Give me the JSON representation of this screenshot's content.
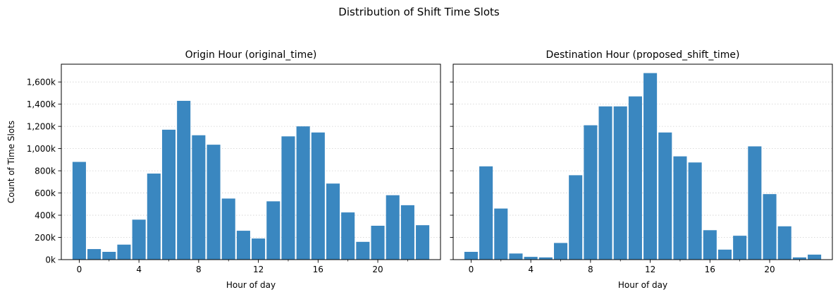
{
  "figure_title": "Distribution of Shift Time Slots",
  "bar_color": "#3a87c0",
  "chart_data": [
    {
      "type": "bar",
      "title": "Origin Hour (original_time)",
      "xlabel": "Hour of day",
      "ylabel": "Count of Time Slots",
      "x_ticks": [
        0,
        4,
        8,
        12,
        16,
        20
      ],
      "y_ticks": [
        0,
        200000,
        400000,
        600000,
        800000,
        1000000,
        1200000,
        1400000,
        1600000
      ],
      "y_tick_labels": [
        "0k",
        "200k",
        "400k",
        "600k",
        "800k",
        "1,000k",
        "1,200k",
        "1,400k",
        "1,600k"
      ],
      "xlim": [
        -1.2,
        24.2
      ],
      "ylim": [
        0,
        1760000
      ],
      "grid": "y, dotted",
      "categories": [
        0,
        1,
        2,
        3,
        4,
        5,
        6,
        7,
        8,
        9,
        10,
        11,
        12,
        13,
        14,
        15,
        16,
        17,
        18,
        19,
        20,
        21,
        22,
        23
      ],
      "values": [
        880000,
        95000,
        70000,
        135000,
        360000,
        775000,
        1170000,
        1430000,
        1120000,
        1035000,
        550000,
        260000,
        190000,
        525000,
        1110000,
        1200000,
        1145000,
        685000,
        425000,
        160000,
        305000,
        580000,
        490000,
        310000
      ]
    },
    {
      "type": "bar",
      "title": "Destination Hour (proposed_shift_time)",
      "xlabel": "Hour of day",
      "ylabel": "",
      "x_ticks": [
        0,
        4,
        8,
        12,
        16,
        20
      ],
      "xlim": [
        -1.2,
        24.2
      ],
      "ylim": [
        0,
        1760000
      ],
      "grid": "y, dotted",
      "categories": [
        0,
        1,
        2,
        3,
        4,
        5,
        6,
        7,
        8,
        9,
        10,
        11,
        12,
        13,
        14,
        15,
        16,
        17,
        18,
        19,
        20,
        21,
        22,
        23
      ],
      "values": [
        70000,
        840000,
        460000,
        55000,
        25000,
        20000,
        150000,
        760000,
        1210000,
        1380000,
        1380000,
        1470000,
        1680000,
        1145000,
        930000,
        875000,
        265000,
        90000,
        215000,
        1020000,
        590000,
        300000,
        20000,
        45000
      ]
    }
  ]
}
